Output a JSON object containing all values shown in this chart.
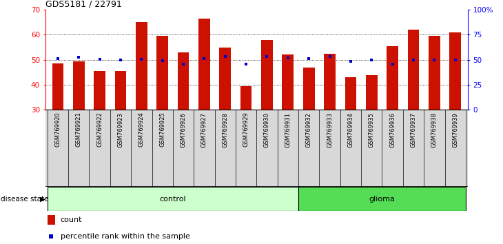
{
  "title": "GDS5181 / 22791",
  "samples": [
    "GSM769920",
    "GSM769921",
    "GSM769922",
    "GSM769923",
    "GSM769924",
    "GSM769925",
    "GSM769926",
    "GSM769927",
    "GSM769928",
    "GSM769929",
    "GSM769930",
    "GSM769931",
    "GSM769932",
    "GSM769933",
    "GSM769934",
    "GSM769935",
    "GSM769936",
    "GSM769937",
    "GSM769938",
    "GSM769939"
  ],
  "bar_heights": [
    48.5,
    49.5,
    45.5,
    45.5,
    65.0,
    59.5,
    53.0,
    66.5,
    55.0,
    39.5,
    58.0,
    52.0,
    47.0,
    52.5,
    43.0,
    44.0,
    55.5,
    62.0,
    59.5,
    61.0
  ],
  "percentile_values": [
    51.5,
    52.5,
    50.5,
    50.0,
    50.5,
    49.0,
    46.0,
    51.0,
    53.0,
    45.5,
    53.5,
    52.0,
    51.0,
    53.0,
    48.5,
    49.5,
    46.0,
    49.5,
    49.5,
    49.5
  ],
  "bar_bottom": 30,
  "ylim_left": [
    30,
    70
  ],
  "ylim_right": [
    0,
    100
  ],
  "yticks_left": [
    30,
    40,
    50,
    60,
    70
  ],
  "yticks_right": [
    0,
    25,
    50,
    75,
    100
  ],
  "ytick_labels_right": [
    "0",
    "25",
    "50",
    "75",
    "100%"
  ],
  "bar_color": "#cc1100",
  "percentile_color": "#0000cc",
  "n_control": 12,
  "n_glioma": 8,
  "control_color": "#ccffcc",
  "glioma_color": "#55dd55",
  "control_label": "control",
  "glioma_label": "glioma",
  "disease_state_label": "disease state",
  "legend_count": "count",
  "legend_percentile": "percentile rank within the sample",
  "background_color": "#ffffff",
  "label_area_color": "#d8d8d8"
}
